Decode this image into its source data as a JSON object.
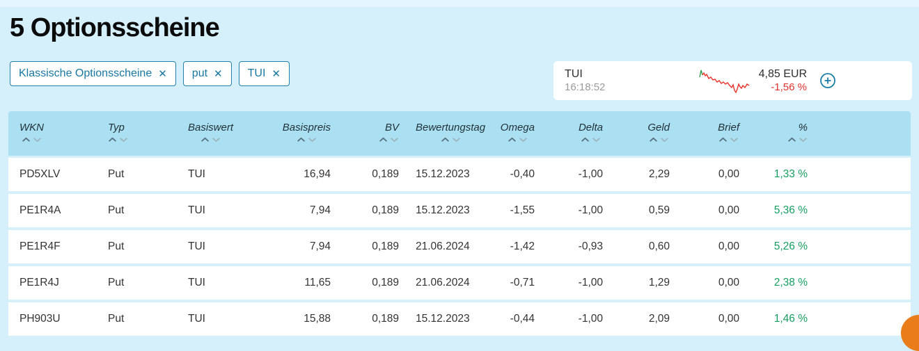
{
  "page": {
    "title": "5 Optionsscheine"
  },
  "filters": [
    {
      "label": "Klassische Optionsscheine",
      "remove_icon": "✕"
    },
    {
      "label": "put",
      "remove_icon": "✕"
    },
    {
      "label": "TUI",
      "remove_icon": "✕"
    }
  ],
  "quote_card": {
    "name": "TUI",
    "time": "16:18:52",
    "price": "4,85 EUR",
    "change_pct": "-1,56 %"
  },
  "table": {
    "columns": [
      {
        "key": "wkn",
        "label": "WKN",
        "align": "left"
      },
      {
        "key": "typ",
        "label": "Typ",
        "align": "left"
      },
      {
        "key": "basiswert",
        "label": "Basiswert",
        "align": "left"
      },
      {
        "key": "basispreis",
        "label": "Basispreis",
        "align": "right"
      },
      {
        "key": "bv",
        "label": "BV",
        "align": "right"
      },
      {
        "key": "bewertungstag",
        "label": "Bewertungstag",
        "align": "left-sm"
      },
      {
        "key": "omega",
        "label": "Omega",
        "align": "right"
      },
      {
        "key": "delta",
        "label": "Delta",
        "align": "right"
      },
      {
        "key": "geld",
        "label": "Geld",
        "align": "right"
      },
      {
        "key": "brief",
        "label": "Brief",
        "align": "right"
      },
      {
        "key": "pct",
        "label": "%",
        "align": "right"
      }
    ],
    "rows": [
      {
        "wkn": "PD5XLV",
        "typ": "Put",
        "basiswert": "TUI",
        "basispreis": "16,94",
        "bv": "0,189",
        "bewertungstag": "15.12.2023",
        "omega": "-0,40",
        "delta": "-1,00",
        "geld": "2,29",
        "brief": "0,00",
        "pct": "1,33 %"
      },
      {
        "wkn": "PE1R4A",
        "typ": "Put",
        "basiswert": "TUI",
        "basispreis": "7,94",
        "bv": "0,189",
        "bewertungstag": "15.12.2023",
        "omega": "-1,55",
        "delta": "-1,00",
        "geld": "0,59",
        "brief": "0,00",
        "pct": "5,36 %"
      },
      {
        "wkn": "PE1R4F",
        "typ": "Put",
        "basiswert": "TUI",
        "basispreis": "7,94",
        "bv": "0,189",
        "bewertungstag": "21.06.2024",
        "omega": "-1,42",
        "delta": "-0,93",
        "geld": "0,60",
        "brief": "0,00",
        "pct": "5,26 %"
      },
      {
        "wkn": "PE1R4J",
        "typ": "Put",
        "basiswert": "TUI",
        "basispreis": "11,65",
        "bv": "0,189",
        "bewertungstag": "21.06.2024",
        "omega": "-0,71",
        "delta": "-1,00",
        "geld": "1,29",
        "brief": "0,00",
        "pct": "2,38 %"
      },
      {
        "wkn": "PH903U",
        "typ": "Put",
        "basiswert": "TUI",
        "basispreis": "15,88",
        "bv": "0,189",
        "bewertungstag": "15.12.2023",
        "omega": "-0,44",
        "delta": "-1,00",
        "geld": "2,09",
        "brief": "0,00",
        "pct": "1,46 %"
      }
    ]
  },
  "colors": {
    "page_bg": "#d5effb",
    "header_bg": "#abe0f2",
    "chip_blue": "#1878a3",
    "positive_green": "#169e60",
    "negative_red": "#e0322d",
    "spark_red": "#e8332b",
    "spark_green": "#2e9e53",
    "fab_orange": "#e87d1a"
  }
}
